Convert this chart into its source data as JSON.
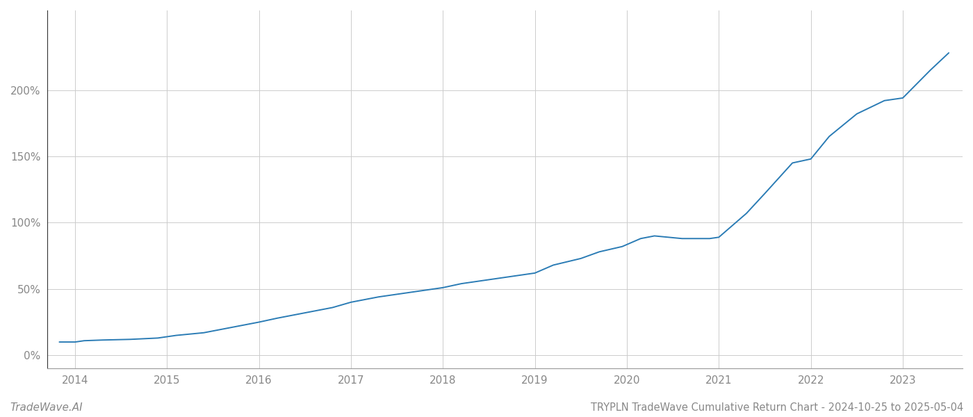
{
  "title": "TRYPLN TradeWave Cumulative Return Chart - 2024-10-25 to 2025-05-04",
  "watermark": "TradeWave.AI",
  "line_color": "#2b7cb5",
  "line_width": 1.4,
  "background_color": "#ffffff",
  "grid_color": "#cccccc",
  "x_years": [
    2014,
    2015,
    2016,
    2017,
    2018,
    2019,
    2020,
    2021,
    2022,
    2023
  ],
  "data_x": [
    2013.83,
    2014.0,
    2014.1,
    2014.3,
    2014.6,
    2014.9,
    2015.0,
    2015.1,
    2015.4,
    2015.7,
    2016.0,
    2016.2,
    2016.5,
    2016.8,
    2017.0,
    2017.3,
    2017.6,
    2017.9,
    2018.0,
    2018.2,
    2018.5,
    2018.8,
    2019.0,
    2019.2,
    2019.5,
    2019.7,
    2019.95,
    2020.05,
    2020.15,
    2020.3,
    2020.6,
    2020.9,
    2021.0,
    2021.3,
    2021.5,
    2021.8,
    2022.0,
    2022.2,
    2022.5,
    2022.8,
    2023.0,
    2023.3,
    2023.5
  ],
  "data_y": [
    10,
    10,
    11,
    11.5,
    12,
    13,
    14,
    15,
    17,
    21,
    25,
    28,
    32,
    36,
    40,
    44,
    47,
    50,
    51,
    54,
    57,
    60,
    62,
    68,
    73,
    78,
    82,
    85,
    88,
    90,
    88,
    88,
    89,
    107,
    122,
    145,
    148,
    165,
    182,
    192,
    194,
    215,
    228
  ],
  "ylim": [
    -10,
    260
  ],
  "yticks": [
    0,
    50,
    100,
    150,
    200
  ],
  "xlim": [
    2013.7,
    2023.65
  ],
  "title_fontsize": 10.5,
  "watermark_fontsize": 11,
  "tick_color": "#888888",
  "tick_fontsize": 11,
  "left_spine_color": "#333333",
  "bottom_spine_color": "#999999"
}
